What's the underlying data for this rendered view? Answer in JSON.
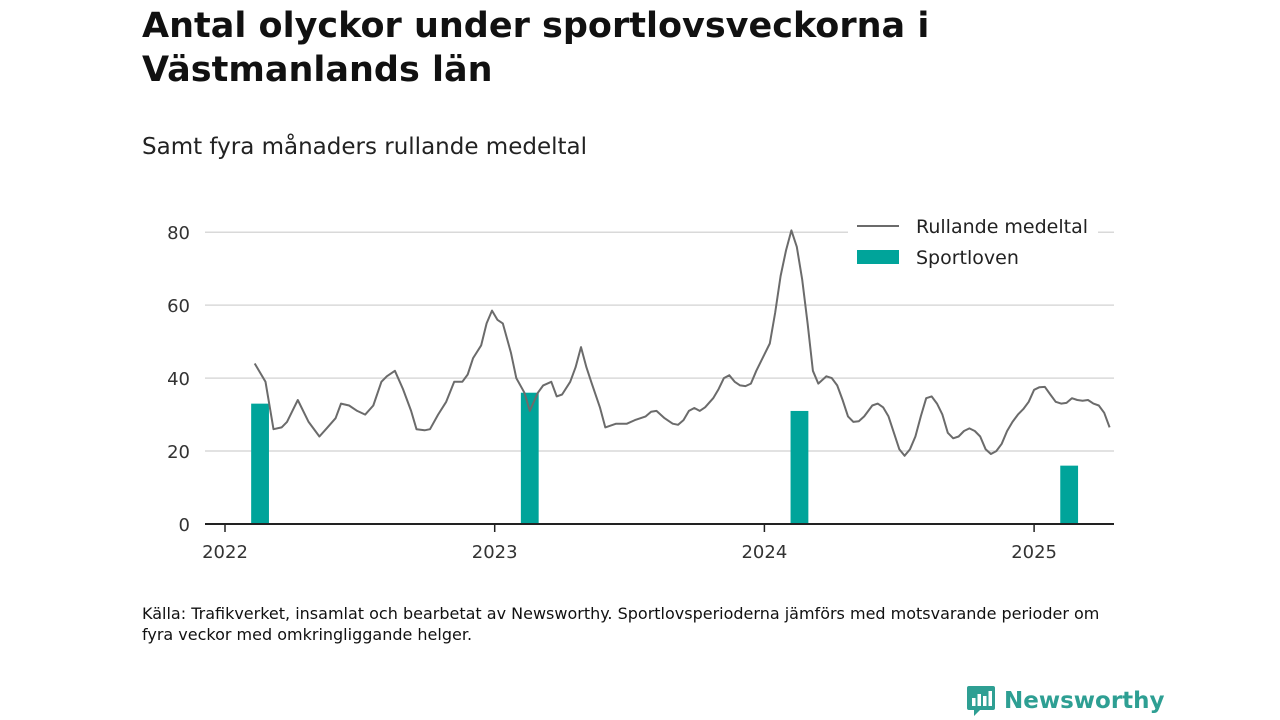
{
  "header": {
    "title": "Antal olyckor under sportlovsveckorna i Västmanlands län",
    "subtitle": "Samt fyra månaders rullande medeltal"
  },
  "footer": {
    "source": "Källa: Trafikverket, insamlat och bearbetat av Newsworthy. Sportlovsperioderna jämförs med motsvarande perioder om fyra veckor med omkringliggande helger.",
    "brand": "Newsworthy"
  },
  "colors": {
    "line": "#6b6b6b",
    "bar": "#00a49a",
    "grid": "#d9d9d9",
    "axis": "#222222",
    "brand": "#2e9f93"
  },
  "chart_data": {
    "type": "bar+line",
    "grid": true,
    "legend_position": "top-right",
    "ylim": [
      0,
      85
    ],
    "yticks": [
      0,
      20,
      40,
      60,
      80
    ],
    "xlim": [
      2021.9,
      2025.3
    ],
    "xticks": [
      {
        "value": 2022,
        "label": "2022"
      },
      {
        "value": 2023,
        "label": "2023"
      },
      {
        "value": 2024,
        "label": "2024"
      },
      {
        "value": 2025,
        "label": "2025"
      }
    ],
    "legend": [
      {
        "label": "Rullande medeltal",
        "kind": "line"
      },
      {
        "label": "Sportloven",
        "kind": "bar"
      }
    ],
    "bars": {
      "name": "Sportloven",
      "width_years": 0.066,
      "x": [
        2022.13,
        2023.13,
        2024.13,
        2025.13
      ],
      "values": [
        33,
        36,
        31,
        16
      ]
    },
    "line": {
      "name": "Rullande medeltal",
      "points": [
        [
          2022.11,
          44
        ],
        [
          2022.15,
          39
        ],
        [
          2022.18,
          26
        ],
        [
          2022.21,
          26.5
        ],
        [
          2022.23,
          28
        ],
        [
          2022.25,
          31
        ],
        [
          2022.27,
          34
        ],
        [
          2022.31,
          28
        ],
        [
          2022.35,
          24
        ],
        [
          2022.38,
          26.5
        ],
        [
          2022.41,
          29
        ],
        [
          2022.43,
          33
        ],
        [
          2022.46,
          32.5
        ],
        [
          2022.49,
          31
        ],
        [
          2022.52,
          30
        ],
        [
          2022.55,
          32.5
        ],
        [
          2022.58,
          39
        ],
        [
          2022.6,
          40.5
        ],
        [
          2022.63,
          42
        ],
        [
          2022.66,
          37
        ],
        [
          2022.69,
          31
        ],
        [
          2022.71,
          26
        ],
        [
          2022.74,
          25.7
        ],
        [
          2022.76,
          26
        ],
        [
          2022.79,
          30
        ],
        [
          2022.82,
          33.5
        ],
        [
          2022.85,
          39
        ],
        [
          2022.88,
          39
        ],
        [
          2022.9,
          41
        ],
        [
          2022.92,
          45.5
        ],
        [
          2022.95,
          49
        ],
        [
          2022.97,
          55
        ],
        [
          2022.99,
          58.5
        ],
        [
          2023.01,
          56
        ],
        [
          2023.03,
          55
        ],
        [
          2023.06,
          47
        ],
        [
          2023.08,
          40
        ],
        [
          2023.11,
          36
        ],
        [
          2023.13,
          31
        ],
        [
          2023.16,
          36
        ],
        [
          2023.18,
          38
        ],
        [
          2023.21,
          39
        ],
        [
          2023.23,
          35
        ],
        [
          2023.25,
          35.5
        ],
        [
          2023.28,
          39
        ],
        [
          2023.3,
          43
        ],
        [
          2023.32,
          48.5
        ],
        [
          2023.34,
          43
        ],
        [
          2023.36,
          38.5
        ],
        [
          2023.39,
          32
        ],
        [
          2023.41,
          26.5
        ],
        [
          2023.45,
          27.5
        ],
        [
          2023.49,
          27.5
        ],
        [
          2023.52,
          28.5
        ],
        [
          2023.56,
          29.5
        ],
        [
          2023.58,
          30.8
        ],
        [
          2023.6,
          31
        ],
        [
          2023.63,
          29
        ],
        [
          2023.66,
          27.5
        ],
        [
          2023.68,
          27.2
        ],
        [
          2023.7,
          28.5
        ],
        [
          2023.72,
          31
        ],
        [
          2023.74,
          31.8
        ],
        [
          2023.76,
          31
        ],
        [
          2023.78,
          32
        ],
        [
          2023.81,
          34.5
        ],
        [
          2023.83,
          37
        ],
        [
          2023.85,
          40
        ],
        [
          2023.87,
          40.8
        ],
        [
          2023.89,
          39
        ],
        [
          2023.91,
          38
        ],
        [
          2023.93,
          37.8
        ],
        [
          2023.95,
          38.5
        ],
        [
          2023.97,
          42
        ],
        [
          2024.0,
          46.5
        ],
        [
          2024.02,
          49.5
        ],
        [
          2024.04,
          58
        ],
        [
          2024.06,
          68
        ],
        [
          2024.08,
          75
        ],
        [
          2024.1,
          80.5
        ],
        [
          2024.12,
          76
        ],
        [
          2024.14,
          67
        ],
        [
          2024.16,
          55
        ],
        [
          2024.18,
          42
        ],
        [
          2024.2,
          38.5
        ],
        [
          2024.23,
          40.5
        ],
        [
          2024.25,
          40
        ],
        [
          2024.27,
          38
        ],
        [
          2024.29,
          34
        ],
        [
          2024.31,
          29.5
        ],
        [
          2024.33,
          28
        ],
        [
          2024.35,
          28.2
        ],
        [
          2024.37,
          29.5
        ],
        [
          2024.4,
          32.5
        ],
        [
          2024.42,
          33
        ],
        [
          2024.44,
          32
        ],
        [
          2024.46,
          29.5
        ],
        [
          2024.48,
          25
        ],
        [
          2024.5,
          20.5
        ],
        [
          2024.52,
          18.7
        ],
        [
          2024.54,
          20.5
        ],
        [
          2024.56,
          24
        ],
        [
          2024.58,
          29.5
        ],
        [
          2024.6,
          34.5
        ],
        [
          2024.62,
          35
        ],
        [
          2024.64,
          33
        ],
        [
          2024.66,
          30
        ],
        [
          2024.68,
          25
        ],
        [
          2024.7,
          23.5
        ],
        [
          2024.72,
          24
        ],
        [
          2024.74,
          25.5
        ],
        [
          2024.76,
          26.2
        ],
        [
          2024.78,
          25.5
        ],
        [
          2024.8,
          24
        ],
        [
          2024.82,
          20.5
        ],
        [
          2024.84,
          19.2
        ],
        [
          2024.86,
          20
        ],
        [
          2024.88,
          22
        ],
        [
          2024.9,
          25.5
        ],
        [
          2024.92,
          28
        ],
        [
          2024.94,
          30
        ],
        [
          2024.96,
          31.5
        ],
        [
          2024.98,
          33.5
        ],
        [
          2025.0,
          36.8
        ],
        [
          2025.02,
          37.5
        ],
        [
          2025.04,
          37.6
        ],
        [
          2025.06,
          35.5
        ],
        [
          2025.08,
          33.5
        ],
        [
          2025.1,
          33
        ],
        [
          2025.12,
          33.2
        ],
        [
          2025.14,
          34.5
        ],
        [
          2025.16,
          34
        ],
        [
          2025.18,
          33.8
        ],
        [
          2025.2,
          34
        ],
        [
          2025.22,
          33
        ],
        [
          2025.24,
          32.5
        ],
        [
          2025.26,
          30.5
        ],
        [
          2025.28,
          26.5
        ]
      ]
    }
  }
}
